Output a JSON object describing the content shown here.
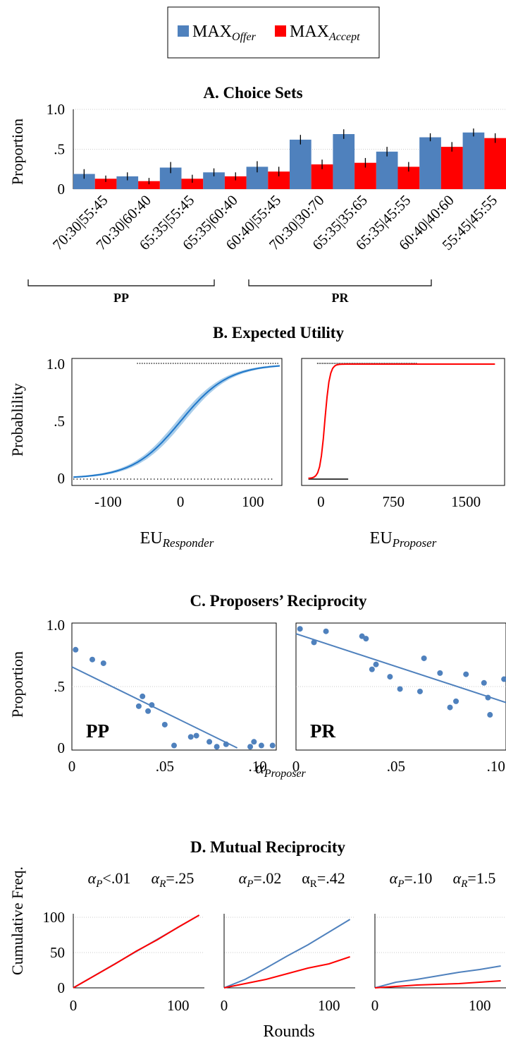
{
  "colors": {
    "offer": "#4F81BD",
    "accept": "#FF0000",
    "line_blue": "#1F77C9",
    "band_blue": "#A9CDEA",
    "band_red": "#F4A7A7",
    "scatter": "#4F81BD",
    "grid": "#BBBBBB"
  },
  "legend": {
    "offer_base": "MAX",
    "offer_sub": "Offer",
    "accept_base": "MAX",
    "accept_sub": "Accept"
  },
  "chart_data": [
    {
      "panel": "A",
      "type": "bar",
      "title": "A. Choice Sets",
      "ylabel": "Proportion",
      "ylim": [
        0,
        1.0
      ],
      "yticks": [
        0,
        0.5,
        1.0
      ],
      "ytick_labels": [
        "0",
        ".5",
        "1.0"
      ],
      "categories": [
        "70:30|55:45",
        "70:30|60:40",
        "65:35|55:45",
        "65:35|60:40",
        "60:40|55:45",
        "70:30|30:70",
        "65:35|35:65",
        "65:35|45:55",
        "60:40|40:60",
        "55:45|45:55"
      ],
      "series": [
        {
          "name": "MAX_Offer",
          "values": [
            0.19,
            0.16,
            0.27,
            0.21,
            0.28,
            0.62,
            0.69,
            0.47,
            0.65,
            0.71
          ],
          "errors": [
            0.06,
            0.05,
            0.07,
            0.05,
            0.07,
            0.06,
            0.06,
            0.06,
            0.05,
            0.05
          ]
        },
        {
          "name": "MAX_Accept",
          "values": [
            0.13,
            0.1,
            0.13,
            0.16,
            0.22,
            0.31,
            0.33,
            0.28,
            0.53,
            0.64
          ],
          "errors": [
            0.04,
            0.04,
            0.05,
            0.05,
            0.06,
            0.06,
            0.06,
            0.06,
            0.06,
            0.06
          ]
        }
      ],
      "groups": [
        {
          "label": "PP",
          "from": 0,
          "to": 3
        },
        {
          "label": "PR",
          "from": 5,
          "to": 9
        }
      ]
    },
    {
      "panel": "B",
      "type": "line",
      "title": "B. Expected Utility",
      "ylabel": "Probablility",
      "subplots": [
        {
          "xlabel_base": "EU",
          "xlabel_sub": "Responder",
          "xlim": [
            -150,
            140
          ],
          "xticks": [
            -100,
            0,
            100
          ],
          "xtick_labels": [
            "-100",
            "0",
            "100"
          ],
          "ylim": [
            0,
            1
          ],
          "ytick_labels": [
            "0",
            ".5",
            "1.0"
          ],
          "curve": {
            "type": "logistic",
            "center": 0,
            "scale": 33,
            "x_range": [
              -148,
              137
            ]
          },
          "band_halfwidth": 0.035,
          "color_key": "blue"
        },
        {
          "xlabel_base": "EU",
          "xlabel_sub": "Proposer",
          "xlim": [
            -200,
            1900
          ],
          "xticks": [
            0,
            750,
            1500
          ],
          "xtick_labels": [
            "0",
            "750",
            "1500"
          ],
          "ylim": [
            0,
            1
          ],
          "ytick_labels": [
            "0",
            ".5",
            "1.0"
          ],
          "curve": {
            "type": "logistic",
            "center": 40,
            "scale": 25,
            "x_range": [
              -130,
              1800
            ]
          },
          "band_halfwidth": 0.03,
          "color_key": "red"
        }
      ]
    },
    {
      "panel": "C",
      "type": "scatter",
      "title": "C. Proposers’ Reciprocity",
      "ylabel": "Proportion",
      "xlabel_base": "α",
      "xlabel_sub": "Proposer",
      "subplots": [
        {
          "label": "PP",
          "xlim": [
            0,
            0.11
          ],
          "ylim": [
            0,
            1
          ],
          "xtick_labels": [
            "0",
            ".05",
            ".10"
          ],
          "ytick_labels": [
            "0",
            ".5",
            "1.0"
          ],
          "points": [
            [
              0.002,
              0.8
            ],
            [
              0.011,
              0.72
            ],
            [
              0.017,
              0.69
            ],
            [
              0.036,
              0.34
            ],
            [
              0.038,
              0.42
            ],
            [
              0.041,
              0.3
            ],
            [
              0.043,
              0.35
            ],
            [
              0.05,
              0.19
            ],
            [
              0.055,
              0.02
            ],
            [
              0.064,
              0.09
            ],
            [
              0.067,
              0.1
            ],
            [
              0.074,
              0.05
            ],
            [
              0.078,
              0.01
            ],
            [
              0.083,
              0.03
            ],
            [
              0.096,
              0.01
            ],
            [
              0.098,
              0.05
            ],
            [
              0.102,
              0.02
            ],
            [
              0.108,
              0.02
            ]
          ],
          "fit": [
            [
              0.0,
              0.66
            ],
            [
              0.089,
              0.0
            ]
          ]
        },
        {
          "label": "PR",
          "xlim": [
            0,
            0.105
          ],
          "ylim": [
            0,
            1
          ],
          "xtick_labels": [
            "0",
            ".05",
            ".10"
          ],
          "ytick_labels": [
            "0",
            ".5",
            "1.0"
          ],
          "points": [
            [
              0.002,
              0.97
            ],
            [
              0.009,
              0.86
            ],
            [
              0.015,
              0.95
            ],
            [
              0.033,
              0.91
            ],
            [
              0.035,
              0.89
            ],
            [
              0.038,
              0.64
            ],
            [
              0.04,
              0.68
            ],
            [
              0.047,
              0.58
            ],
            [
              0.052,
              0.48
            ],
            [
              0.062,
              0.46
            ],
            [
              0.064,
              0.73
            ],
            [
              0.072,
              0.61
            ],
            [
              0.077,
              0.33
            ],
            [
              0.08,
              0.38
            ],
            [
              0.085,
              0.6
            ],
            [
              0.094,
              0.53
            ],
            [
              0.096,
              0.41
            ],
            [
              0.097,
              0.27
            ],
            [
              0.104,
              0.56
            ]
          ],
          "fit": [
            [
              0.0,
              0.93
            ],
            [
              0.105,
              0.37
            ]
          ]
        }
      ]
    },
    {
      "panel": "D",
      "type": "line",
      "title": "D. Mutual Reciprocity",
      "ylabel": "Cumulative Freq.",
      "xlabel": "Rounds",
      "subplots": [
        {
          "label_p": "α_P<.01",
          "label_r": "α_R=.25",
          "label_p_base": "α",
          "label_p_sub": "P",
          "label_p_rest": "<.01",
          "label_r_base": "α",
          "label_r_sub": "R",
          "label_r_rest": "=.25",
          "xlim": [
            0,
            125
          ],
          "ylim": [
            0,
            110
          ],
          "xtick_labels": [
            "0",
            "100"
          ],
          "ytick_labels": [
            "0",
            "50",
            "100"
          ],
          "series": [
            {
              "name": "MAX_Offer",
              "values": [
                [
                  0,
                  0
                ],
                [
                  120,
                  103
                ]
              ]
            },
            {
              "name": "MAX_Accept",
              "values": [
                [
                  0,
                  0
                ],
                [
                  20,
                  17
                ],
                [
                  40,
                  34
                ],
                [
                  60,
                  52
                ],
                [
                  80,
                  68
                ],
                [
                  100,
                  86
                ],
                [
                  120,
                  103
                ]
              ]
            }
          ]
        },
        {
          "label_p": "α_P=.02",
          "label_r": "αR=.42",
          "label_p_base": "α",
          "label_p_sub": "P",
          "label_p_rest": "=.02",
          "label_r_base": "α",
          "label_r_sub": "R",
          "label_r_rest": "=.42",
          "xlim": [
            0,
            125
          ],
          "ylim": [
            0,
            110
          ],
          "xtick_labels": [
            "0",
            "100"
          ],
          "ytick_labels": [
            "0",
            "50",
            "100"
          ],
          "series": [
            {
              "name": "MAX_Offer",
              "values": [
                [
                  0,
                  0
                ],
                [
                  20,
                  12
                ],
                [
                  40,
                  28
                ],
                [
                  60,
                  45
                ],
                [
                  80,
                  61
                ],
                [
                  100,
                  79
                ],
                [
                  120,
                  97
                ]
              ]
            },
            {
              "name": "MAX_Accept",
              "values": [
                [
                  0,
                  0
                ],
                [
                  20,
                  6
                ],
                [
                  40,
                  12
                ],
                [
                  60,
                  20
                ],
                [
                  80,
                  28
                ],
                [
                  100,
                  34
                ],
                [
                  120,
                  44
                ]
              ]
            }
          ]
        },
        {
          "label_p": "α_P=.10",
          "label_r": "α_R=1.5",
          "label_p_base": "α",
          "label_p_sub": "P",
          "label_p_rest": "=.10",
          "label_r_base": "α",
          "label_r_sub": "R",
          "label_r_rest": "=1.5",
          "xlim": [
            0,
            125
          ],
          "ylim": [
            0,
            110
          ],
          "xtick_labels": [
            "0",
            "100"
          ],
          "ytick_labels": [
            "0",
            "50",
            "100"
          ],
          "series": [
            {
              "name": "MAX_Offer",
              "values": [
                [
                  0,
                  0
                ],
                [
                  20,
                  8
                ],
                [
                  40,
                  12
                ],
                [
                  60,
                  17
                ],
                [
                  80,
                  22
                ],
                [
                  100,
                  26
                ],
                [
                  120,
                  31
                ]
              ]
            },
            {
              "name": "MAX_Accept",
              "values": [
                [
                  0,
                  0
                ],
                [
                  20,
                  2
                ],
                [
                  40,
                  4
                ],
                [
                  60,
                  5
                ],
                [
                  80,
                  6
                ],
                [
                  100,
                  8
                ],
                [
                  120,
                  10
                ]
              ]
            }
          ]
        }
      ]
    }
  ]
}
